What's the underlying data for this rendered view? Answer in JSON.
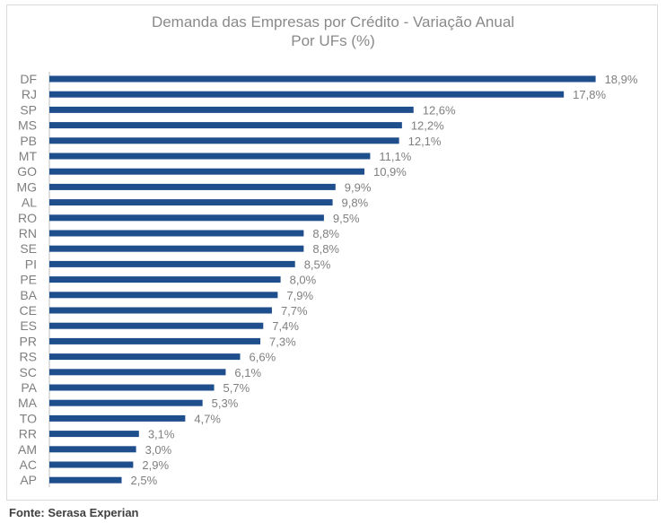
{
  "chart_data": {
    "type": "bar",
    "orientation": "horizontal",
    "title": "Demanda das Empresas por Crédito - Variação Anual",
    "subtitle": "Por UFs (%)",
    "categories": [
      "DF",
      "RJ",
      "SP",
      "MS",
      "PB",
      "MT",
      "GO",
      "MG",
      "AL",
      "RO",
      "RN",
      "SE",
      "PI",
      "PE",
      "BA",
      "CE",
      "ES",
      "PR",
      "RS",
      "SC",
      "PA",
      "MA",
      "TO",
      "RR",
      "AM",
      "AC",
      "AP"
    ],
    "values": [
      18.9,
      17.8,
      12.6,
      12.2,
      12.1,
      11.1,
      10.9,
      9.9,
      9.8,
      9.5,
      8.8,
      8.8,
      8.5,
      8.0,
      7.9,
      7.7,
      7.4,
      7.3,
      6.6,
      6.1,
      5.7,
      5.3,
      4.7,
      3.1,
      3.0,
      2.9,
      2.5
    ],
    "labels": [
      "18,9%",
      "17,8%",
      "12,6%",
      "12,2%",
      "12,1%",
      "11,1%",
      "10,9%",
      "9,9%",
      "9,8%",
      "9,5%",
      "8,8%",
      "8,8%",
      "8,5%",
      "8,0%",
      "7,9%",
      "7,7%",
      "7,4%",
      "7,3%",
      "6,6%",
      "6,1%",
      "5,7%",
      "5,3%",
      "4,7%",
      "3,1%",
      "3,0%",
      "2,9%",
      "2,5%"
    ],
    "bar_color": "#1f4e8c",
    "axis_line": true,
    "grid": false,
    "legend": "none"
  },
  "source": "Fonte: Serasa Experian"
}
